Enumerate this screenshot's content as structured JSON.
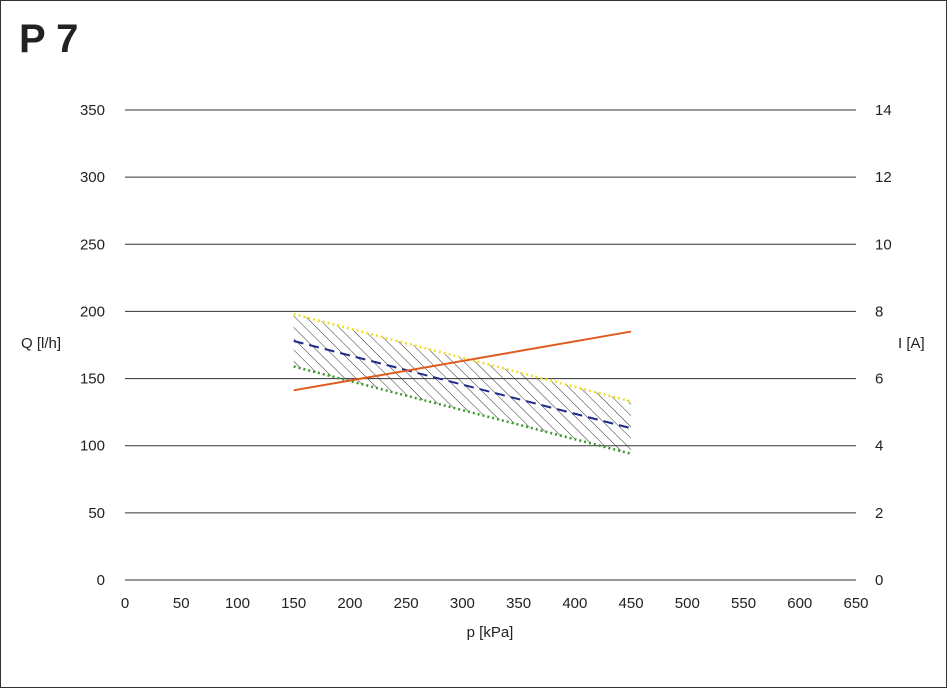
{
  "chart_data": {
    "type": "line",
    "title": "P 7",
    "xlabel": "p [kPa]",
    "ylabel_left": "Q [l/h]",
    "ylabel_right": "I [A]",
    "xlim": [
      0,
      650
    ],
    "ylim_left": [
      0,
      350
    ],
    "ylim_right": [
      0,
      14
    ],
    "x_ticks": [
      0,
      50,
      100,
      150,
      200,
      250,
      300,
      350,
      400,
      450,
      500,
      550,
      600,
      650
    ],
    "y_ticks_left": [
      0,
      50,
      100,
      150,
      200,
      250,
      300,
      350
    ],
    "y_ticks_right": [
      0,
      2,
      4,
      6,
      8,
      10,
      12,
      14
    ],
    "grid": "horizontal",
    "series": [
      {
        "axis": "left",
        "color": "#f0e02a",
        "style": "dotted",
        "x": [
          150,
          450
        ],
        "y": [
          198,
          133
        ]
      },
      {
        "axis": "left",
        "color": "#1f2a8a",
        "style": "dashed",
        "x": [
          150,
          450
        ],
        "y": [
          178,
          113
        ]
      },
      {
        "axis": "left",
        "color": "#3a9a2a",
        "style": "dotted",
        "x": [
          150,
          450
        ],
        "y": [
          159,
          94
        ]
      },
      {
        "axis": "right",
        "color": "#e05a1e",
        "style": "solid",
        "x": [
          150,
          450
        ],
        "y": [
          5.65,
          7.4
        ]
      }
    ],
    "band": {
      "axis": "left",
      "x": [
        150,
        450
      ],
      "upper": [
        198,
        133
      ],
      "lower": [
        159,
        94
      ],
      "fill": "hatched"
    }
  }
}
